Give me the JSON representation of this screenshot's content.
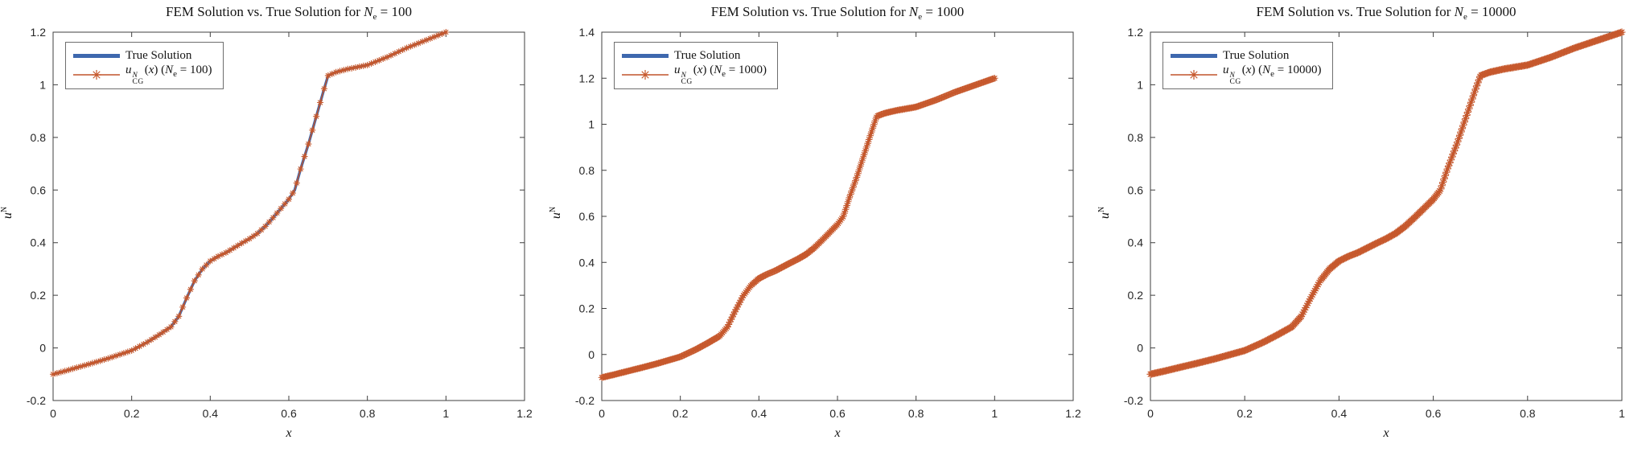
{
  "figure_title": "FEM Solution vs. True Solution comparison figure (3 subplots)",
  "colors": {
    "true_solution_blue": "#3e68ae",
    "fem_orange": "#c0532b",
    "fem_orange_marker": "#c6582c",
    "axis_spine": "#3f3f3f",
    "text": "#1a1a1a",
    "background": "#ffffff",
    "legend_border": "#6e6e6e"
  },
  "chart_data": [
    {
      "type": "line",
      "title": "FEM Solution vs. True Solution for N_e = 100",
      "title_parts": {
        "prefix": "FEM Solution vs. True Solution for ",
        "var": "N",
        "sub": "e",
        "suffix": " = 100"
      },
      "xlabel": "x",
      "ylabel": "u^N",
      "ylabel_parts": {
        "u": "u",
        "sup": "N"
      },
      "xlim": [
        0,
        1.2
      ],
      "ylim": [
        -0.2,
        1.2
      ],
      "xtick_labels": [
        "0",
        "0.2",
        "0.4",
        "0.6",
        "0.8",
        "1",
        "1.2"
      ],
      "xticks": [
        0,
        0.2,
        0.4,
        0.6,
        0.8,
        1,
        1.2
      ],
      "ytick_labels": [
        "-0.2",
        "0",
        "0.2",
        "0.4",
        "0.6",
        "0.8",
        "1",
        "1.2"
      ],
      "yticks": [
        -0.2,
        0,
        0.2,
        0.4,
        0.6,
        0.8,
        1,
        1.2
      ],
      "grid": false,
      "legend_position": "top-left",
      "legend_entries": [
        "True Solution",
        "u_CG^N(x) (N_e = 100)"
      ],
      "legend": {
        "true_label": "True Solution",
        "fem": {
          "u": "u",
          "sup": "N",
          "sub": "CG",
          "open": "(",
          "xvar": "x",
          "mid": ") (",
          "nvar": "N",
          "esub": "e",
          "tail": " = 100)"
        }
      },
      "Ne": 100,
      "series": [
        {
          "name": "True Solution",
          "style": "solid",
          "color": "#3e68ae",
          "linewidth": "thick"
        },
        {
          "name": "u_CG^N(x)",
          "style": "line+asterisk-markers",
          "color": "#c0532b",
          "nodes": 101
        }
      ],
      "x": [
        0.0,
        0.03,
        0.06,
        0.1,
        0.14,
        0.18,
        0.2,
        0.24,
        0.27,
        0.3,
        0.32,
        0.34,
        0.36,
        0.38,
        0.4,
        0.42,
        0.44,
        0.46,
        0.48,
        0.5,
        0.52,
        0.54,
        0.56,
        0.58,
        0.6,
        0.615,
        0.63,
        0.65,
        0.67,
        0.69,
        0.7,
        0.72,
        0.75,
        0.8,
        0.85,
        0.9,
        0.95,
        1.0
      ],
      "y": [
        -0.1,
        -0.088,
        -0.075,
        -0.058,
        -0.04,
        -0.02,
        -0.01,
        0.022,
        0.05,
        0.08,
        0.12,
        0.19,
        0.255,
        0.3,
        0.33,
        0.348,
        0.362,
        0.38,
        0.398,
        0.415,
        0.435,
        0.462,
        0.495,
        0.53,
        0.565,
        0.6,
        0.68,
        0.775,
        0.88,
        0.985,
        1.035,
        1.048,
        1.06,
        1.075,
        1.105,
        1.14,
        1.17,
        1.2
      ]
    },
    {
      "type": "line",
      "title": "FEM Solution vs. True Solution for N_e = 1000",
      "title_parts": {
        "prefix": "FEM Solution vs. True Solution for ",
        "var": "N",
        "sub": "e",
        "suffix": " = 1000"
      },
      "xlabel": "x",
      "ylabel": "u^N",
      "ylabel_parts": {
        "u": "u",
        "sup": "N"
      },
      "xlim": [
        0,
        1.2
      ],
      "ylim": [
        -0.2,
        1.4
      ],
      "xtick_labels": [
        "0",
        "0.2",
        "0.4",
        "0.6",
        "0.8",
        "1",
        "1.2"
      ],
      "xticks": [
        0,
        0.2,
        0.4,
        0.6,
        0.8,
        1,
        1.2
      ],
      "ytick_labels": [
        "-0.2",
        "0",
        "0.2",
        "0.4",
        "0.6",
        "0.8",
        "1",
        "1.2",
        "1.4"
      ],
      "yticks": [
        -0.2,
        0,
        0.2,
        0.4,
        0.6,
        0.8,
        1,
        1.2,
        1.4
      ],
      "grid": false,
      "legend_position": "top-left",
      "legend_entries": [
        "True Solution",
        "u_CG^N(x) (N_e = 1000)"
      ],
      "legend": {
        "true_label": "True Solution",
        "fem": {
          "u": "u",
          "sup": "N",
          "sub": "CG",
          "open": "(",
          "xvar": "x",
          "mid": ") (",
          "nvar": "N",
          "esub": "e",
          "tail": " = 1000)"
        }
      },
      "Ne": 1000,
      "series": [
        {
          "name": "True Solution",
          "style": "solid",
          "color": "#3e68ae",
          "linewidth": "thick"
        },
        {
          "name": "u_CG^N(x)",
          "style": "line+asterisk-markers",
          "color": "#c0532b",
          "nodes": 1001
        }
      ],
      "x": [
        0.0,
        0.03,
        0.06,
        0.1,
        0.14,
        0.18,
        0.2,
        0.24,
        0.27,
        0.3,
        0.32,
        0.34,
        0.36,
        0.38,
        0.4,
        0.42,
        0.44,
        0.46,
        0.48,
        0.5,
        0.52,
        0.54,
        0.56,
        0.58,
        0.6,
        0.615,
        0.63,
        0.65,
        0.67,
        0.69,
        0.7,
        0.72,
        0.75,
        0.8,
        0.85,
        0.9,
        0.95,
        1.0
      ],
      "y": [
        -0.1,
        -0.088,
        -0.075,
        -0.058,
        -0.04,
        -0.02,
        -0.01,
        0.022,
        0.05,
        0.08,
        0.12,
        0.19,
        0.255,
        0.3,
        0.33,
        0.348,
        0.362,
        0.38,
        0.398,
        0.415,
        0.435,
        0.462,
        0.495,
        0.53,
        0.565,
        0.6,
        0.68,
        0.775,
        0.88,
        0.985,
        1.035,
        1.048,
        1.06,
        1.075,
        1.105,
        1.14,
        1.17,
        1.2
      ]
    },
    {
      "type": "line",
      "title": "FEM Solution vs. True Solution for N_e = 10000",
      "title_parts": {
        "prefix": "FEM Solution vs. True Solution for ",
        "var": "N",
        "sub": "e",
        "suffix": " = 10000"
      },
      "xlabel": "x",
      "ylabel": "u^N",
      "ylabel_parts": {
        "u": "u",
        "sup": "N"
      },
      "xlim": [
        0,
        1
      ],
      "ylim": [
        -0.2,
        1.2
      ],
      "xtick_labels": [
        "0",
        "0.2",
        "0.4",
        "0.6",
        "0.8",
        "1"
      ],
      "xticks": [
        0,
        0.2,
        0.4,
        0.6,
        0.8,
        1
      ],
      "ytick_labels": [
        "-0.2",
        "0",
        "0.2",
        "0.4",
        "0.6",
        "0.8",
        "1",
        "1.2"
      ],
      "yticks": [
        -0.2,
        0,
        0.2,
        0.4,
        0.6,
        0.8,
        1,
        1.2
      ],
      "grid": false,
      "legend_position": "top-left",
      "legend_entries": [
        "True Solution",
        "u_CG^N(x) (N_e = 10000)"
      ],
      "legend": {
        "true_label": "True Solution",
        "fem": {
          "u": "u",
          "sup": "N",
          "sub": "CG",
          "open": "(",
          "xvar": "x",
          "mid": ") (",
          "nvar": "N",
          "esub": "e",
          "tail": " = 10000)"
        }
      },
      "Ne": 10000,
      "series": [
        {
          "name": "True Solution",
          "style": "solid",
          "color": "#3e68ae",
          "linewidth": "thick"
        },
        {
          "name": "u_CG^N(x)",
          "style": "line+asterisk-markers",
          "color": "#c0532b",
          "nodes": 10001
        }
      ],
      "x": [
        0.0,
        0.03,
        0.06,
        0.1,
        0.14,
        0.18,
        0.2,
        0.24,
        0.27,
        0.3,
        0.32,
        0.34,
        0.36,
        0.38,
        0.4,
        0.42,
        0.44,
        0.46,
        0.48,
        0.5,
        0.52,
        0.54,
        0.56,
        0.58,
        0.6,
        0.615,
        0.63,
        0.65,
        0.67,
        0.69,
        0.7,
        0.72,
        0.75,
        0.8,
        0.85,
        0.9,
        0.95,
        1.0
      ],
      "y": [
        -0.1,
        -0.088,
        -0.075,
        -0.058,
        -0.04,
        -0.02,
        -0.01,
        0.022,
        0.05,
        0.08,
        0.12,
        0.19,
        0.255,
        0.3,
        0.33,
        0.348,
        0.362,
        0.38,
        0.398,
        0.415,
        0.435,
        0.462,
        0.495,
        0.53,
        0.565,
        0.6,
        0.68,
        0.775,
        0.88,
        0.985,
        1.035,
        1.048,
        1.06,
        1.075,
        1.105,
        1.14,
        1.17,
        1.2
      ]
    }
  ]
}
